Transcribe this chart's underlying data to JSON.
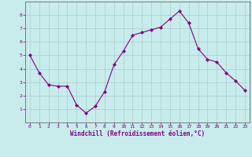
{
  "x": [
    0,
    1,
    2,
    3,
    4,
    5,
    6,
    7,
    8,
    9,
    10,
    11,
    12,
    13,
    14,
    15,
    16,
    17,
    18,
    19,
    20,
    21,
    22,
    23
  ],
  "y": [
    5.0,
    3.7,
    2.8,
    2.7,
    2.7,
    1.3,
    0.7,
    1.2,
    2.3,
    4.3,
    5.3,
    6.5,
    6.7,
    6.9,
    7.1,
    7.7,
    8.3,
    7.4,
    5.5,
    4.7,
    4.5,
    3.7,
    3.1,
    2.4
  ],
  "line_color": "#800080",
  "marker": "D",
  "marker_size": 2,
  "bg_color": "#c8ecec",
  "grid_color": "#aacccc",
  "xlabel": "Windchill (Refroidissement éolien,°C)",
  "xlabel_color": "#800080",
  "tick_color": "#800080",
  "axis_color": "#666666",
  "xlim": [
    -0.5,
    23.5
  ],
  "ylim": [
    0,
    9
  ],
  "yticks": [
    1,
    2,
    3,
    4,
    5,
    6,
    7,
    8
  ],
  "xticks": [
    0,
    1,
    2,
    3,
    4,
    5,
    6,
    7,
    8,
    9,
    10,
    11,
    12,
    13,
    14,
    15,
    16,
    17,
    18,
    19,
    20,
    21,
    22,
    23
  ],
  "tick_fontsize": 4.5,
  "xlabel_fontsize": 5.5
}
